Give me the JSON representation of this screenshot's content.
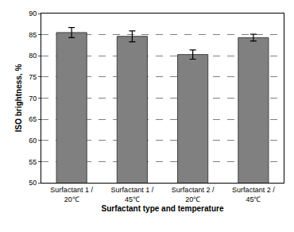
{
  "chart_data": {
    "type": "bar",
    "categories": [
      "Surfactant 1 / 20℃",
      "Surfactant 1 / 45℃",
      "Surfactant 2 / 20℃",
      "Surfactant 2 / 45℃"
    ],
    "values": [
      85.5,
      84.6,
      80.3,
      84.3
    ],
    "errors": [
      1.2,
      1.3,
      1.1,
      0.8
    ],
    "color": "#808080",
    "x_label": "Surfactant type and temperature",
    "y_label": "ISO brightness, %",
    "ylim": [
      50,
      90
    ],
    "yticks": [
      50,
      55,
      60,
      65,
      70,
      75,
      80,
      85,
      90
    ],
    "grid": true
  }
}
